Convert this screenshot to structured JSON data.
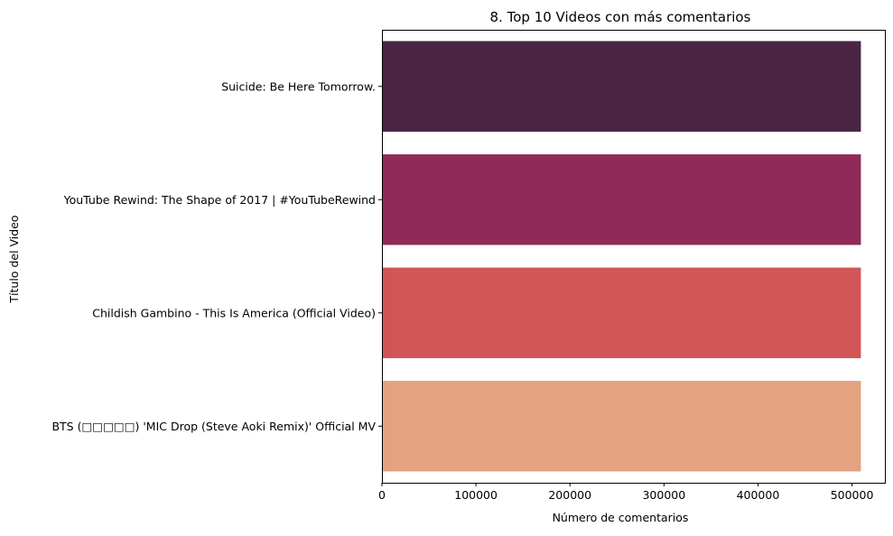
{
  "chart_data": {
    "type": "bar",
    "orientation": "horizontal",
    "title": "8. Top 10 Videos con más comentarios",
    "xlabel": "Número de comentarios",
    "ylabel": "Título del Video",
    "xlim": [
      0,
      535000
    ],
    "xticks": [
      0,
      100000,
      200000,
      300000,
      400000,
      500000
    ],
    "xtick_labels": [
      "0",
      "100000",
      "200000",
      "300000",
      "400000",
      "500000"
    ],
    "grid": false,
    "legend": "none",
    "categories": [
      "Suicide: Be Here Tomorrow.",
      "YouTube Rewind: The Shape of 2017 | #YouTubeRewind",
      "Childish Gambino - This Is America (Official Video)",
      "BTS (□□□□□) 'MIC Drop (Steve Aoki Remix)' Official MV"
    ],
    "values": [
      509500,
      509500,
      509500,
      509500
    ],
    "colors": [
      "#4a2444",
      "#902a59",
      "#d25556",
      "#e4a280"
    ]
  }
}
